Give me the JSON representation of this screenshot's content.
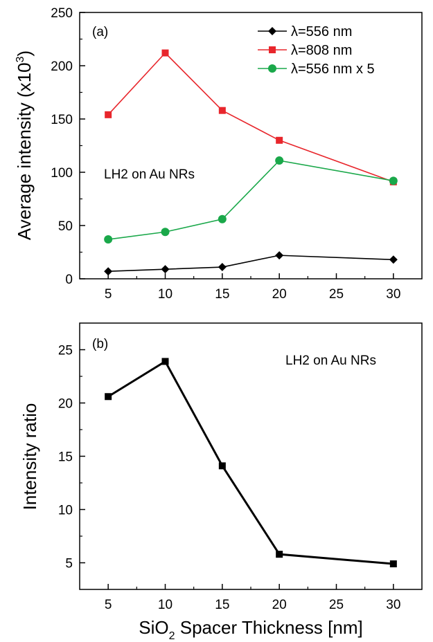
{
  "chart_data": [
    {
      "type": "line",
      "panel_label": "(a)",
      "annotation": "LH2 on Au NRs",
      "ylabel": "Average intensity (x10",
      "ylabel_sup": "3",
      "ylabel_tail": ")",
      "xlabel": "",
      "xlim": [
        2.5,
        32.5
      ],
      "ylim": [
        0,
        250
      ],
      "xticks": [
        5,
        10,
        15,
        20,
        25,
        30
      ],
      "yticks": [
        0,
        50,
        100,
        150,
        200,
        250
      ],
      "grid": false,
      "legend_position": "top-right",
      "x": [
        5,
        10,
        15,
        20,
        30
      ],
      "series": [
        {
          "name": "λ=556 nm",
          "color": "#000000",
          "marker": "diamond",
          "values": [
            7,
            9,
            11,
            22,
            18
          ]
        },
        {
          "name": "λ=808 nm",
          "color": "#e8262c",
          "marker": "square",
          "values": [
            154,
            212,
            158,
            130,
            91
          ]
        },
        {
          "name": "λ=556 nm x 5",
          "color": "#1aa84a",
          "marker": "circle",
          "values": [
            37,
            44,
            56,
            111,
            92
          ]
        }
      ]
    },
    {
      "type": "line",
      "panel_label": "(b)",
      "annotation": "LH2 on Au NRs",
      "ylabel": "Intensity ratio",
      "xlabel": "SiO",
      "xlabel_sub": "2",
      "xlabel_tail": " Spacer Thickness [nm]",
      "xlim": [
        2.5,
        32.5
      ],
      "ylim": [
        2.5,
        27.5
      ],
      "xticks": [
        5,
        10,
        15,
        20,
        25,
        30
      ],
      "yticks": [
        5,
        10,
        15,
        20,
        25
      ],
      "grid": false,
      "x": [
        5,
        10,
        15,
        20,
        30
      ],
      "series": [
        {
          "color": "#000000",
          "marker": "square",
          "values": [
            20.6,
            23.9,
            14.1,
            5.8,
            4.9
          ]
        }
      ]
    }
  ]
}
